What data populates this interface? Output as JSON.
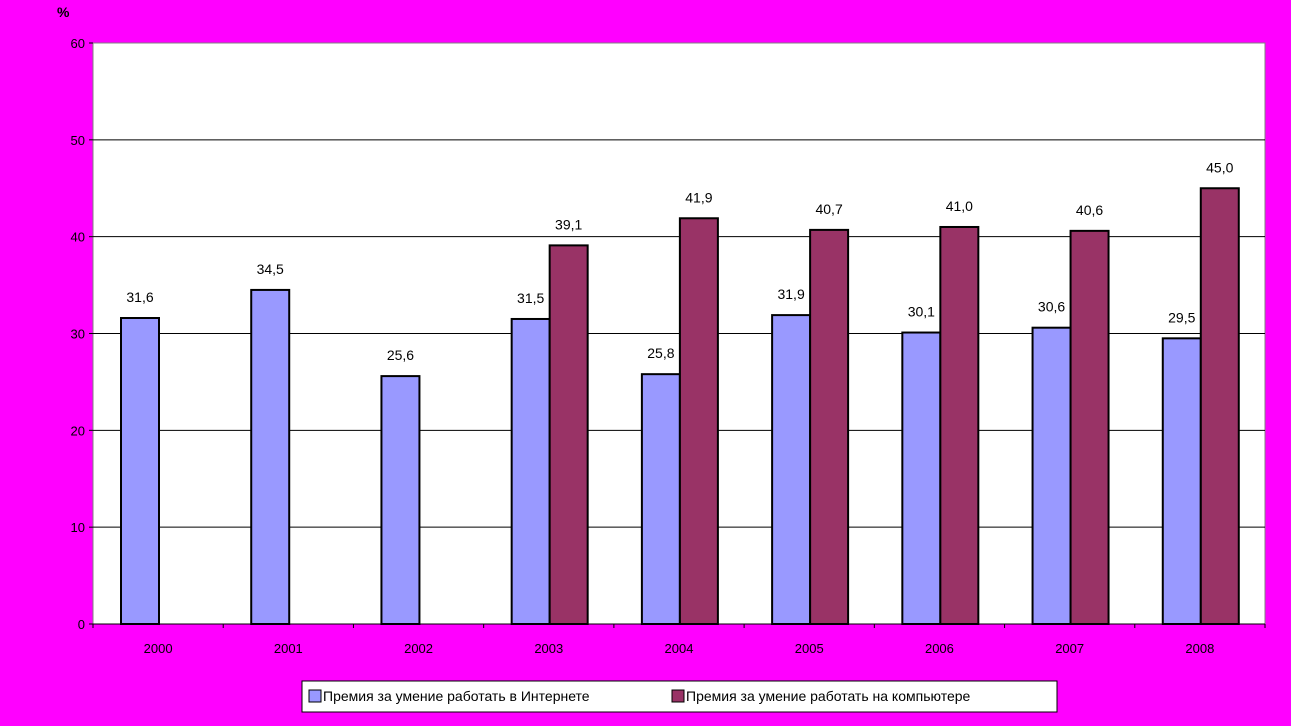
{
  "chart_data": {
    "type": "bar",
    "ylabel": "%",
    "ylim": [
      0,
      60
    ],
    "yticks": [
      0,
      10,
      20,
      30,
      40,
      50,
      60
    ],
    "grid": true,
    "legend_position": "bottom",
    "categories": [
      "2000",
      "2001",
      "2002",
      "2003",
      "2004",
      "2005",
      "2006",
      "2007",
      "2008"
    ],
    "series": [
      {
        "name": "Премия за умение работать в Интернете",
        "color": "#9999ff",
        "values": [
          31.6,
          34.5,
          25.6,
          31.5,
          25.8,
          31.9,
          30.1,
          30.6,
          29.5
        ],
        "labels": [
          "31,6",
          "34,5",
          "25,6",
          "31,5",
          "25,8",
          "31,9",
          "30,1",
          "30,6",
          "29,5"
        ]
      },
      {
        "name": "Премия за умение работать на компьютере",
        "color": "#993366",
        "values": [
          null,
          null,
          null,
          39.1,
          41.9,
          40.7,
          41.0,
          40.6,
          45.0
        ],
        "labels": [
          null,
          null,
          null,
          "39,1",
          "41,9",
          "40,7",
          "41,0",
          "40,6",
          "45,0"
        ]
      }
    ]
  },
  "colors": {
    "background": "#ff00ff",
    "plot_area": "#ffffff"
  }
}
